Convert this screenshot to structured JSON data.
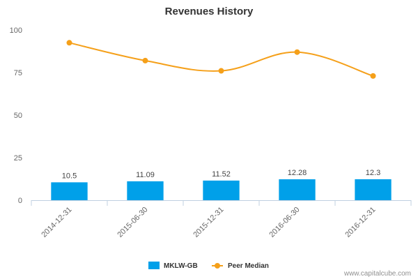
{
  "chart_data": {
    "type": "bar",
    "title": "Revenues History",
    "categories": [
      "2014-12-31",
      "2015-06-30",
      "2015-12-31",
      "2016-06-30",
      "2016-12-31"
    ],
    "series": [
      {
        "name": "MKLW-GB",
        "type": "bar",
        "color": "#00a0e9",
        "values": [
          10.5,
          11.09,
          11.52,
          12.28,
          12.3
        ],
        "labels": [
          "10.5",
          "11.09",
          "11.52",
          "12.28",
          "12.3"
        ]
      },
      {
        "name": "Peer Median",
        "type": "line",
        "color": "#f5a01a",
        "values": [
          92.5,
          82,
          76,
          87,
          73
        ]
      }
    ],
    "ylim": [
      0,
      100
    ],
    "yticks": [
      "0",
      "25",
      "50",
      "75",
      "100"
    ],
    "grid": false,
    "legend": "bottom-center",
    "credit": "www.capitalcube.com"
  }
}
